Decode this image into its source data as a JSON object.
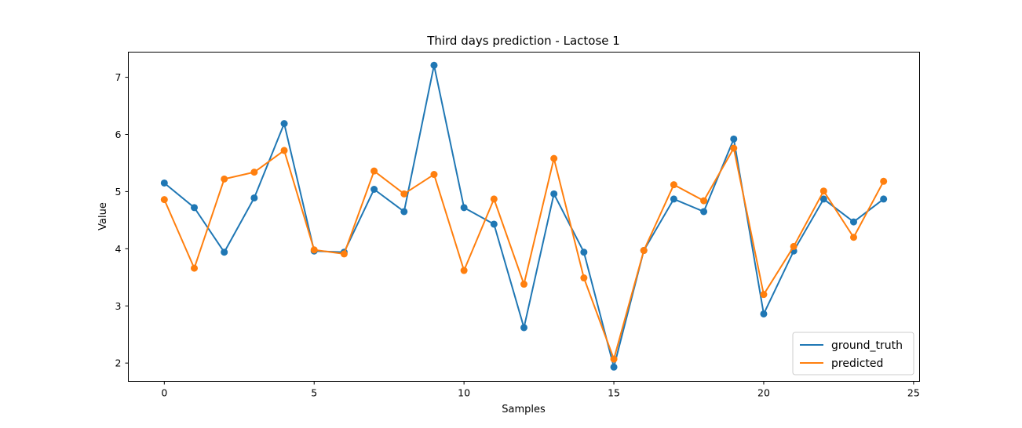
{
  "chart_data": {
    "type": "line",
    "title": "Third days prediction - Lactose 1",
    "xlabel": "Samples",
    "ylabel": "Value",
    "xlim": [
      -1.2,
      25.2
    ],
    "ylim": [
      1.68,
      7.44
    ],
    "xticks": [
      0,
      5,
      10,
      15,
      20,
      25
    ],
    "yticks": [
      2,
      3,
      4,
      5,
      6,
      7
    ],
    "grid": false,
    "legend_position": "lower-right",
    "x": [
      0,
      1,
      2,
      3,
      4,
      5,
      6,
      7,
      8,
      9,
      10,
      11,
      12,
      13,
      14,
      15,
      16,
      17,
      18,
      19,
      20,
      21,
      22,
      23,
      24
    ],
    "series": [
      {
        "name": "ground_truth",
        "color": "#1f77b4",
        "values": [
          5.15,
          4.72,
          3.94,
          4.89,
          6.19,
          3.96,
          3.94,
          5.04,
          4.65,
          7.21,
          4.72,
          4.43,
          2.62,
          4.96,
          3.94,
          1.93,
          3.97,
          4.87,
          4.65,
          5.92,
          2.86,
          3.96,
          4.87,
          4.47,
          4.87
        ]
      },
      {
        "name": "predicted",
        "color": "#ff7f0e",
        "values": [
          4.86,
          3.66,
          5.22,
          5.34,
          5.72,
          3.98,
          3.91,
          5.36,
          4.96,
          5.3,
          3.62,
          4.87,
          3.38,
          5.58,
          3.49,
          2.07,
          3.97,
          5.12,
          4.84,
          5.76,
          3.2,
          4.04,
          5.01,
          4.2,
          5.18
        ]
      }
    ]
  }
}
